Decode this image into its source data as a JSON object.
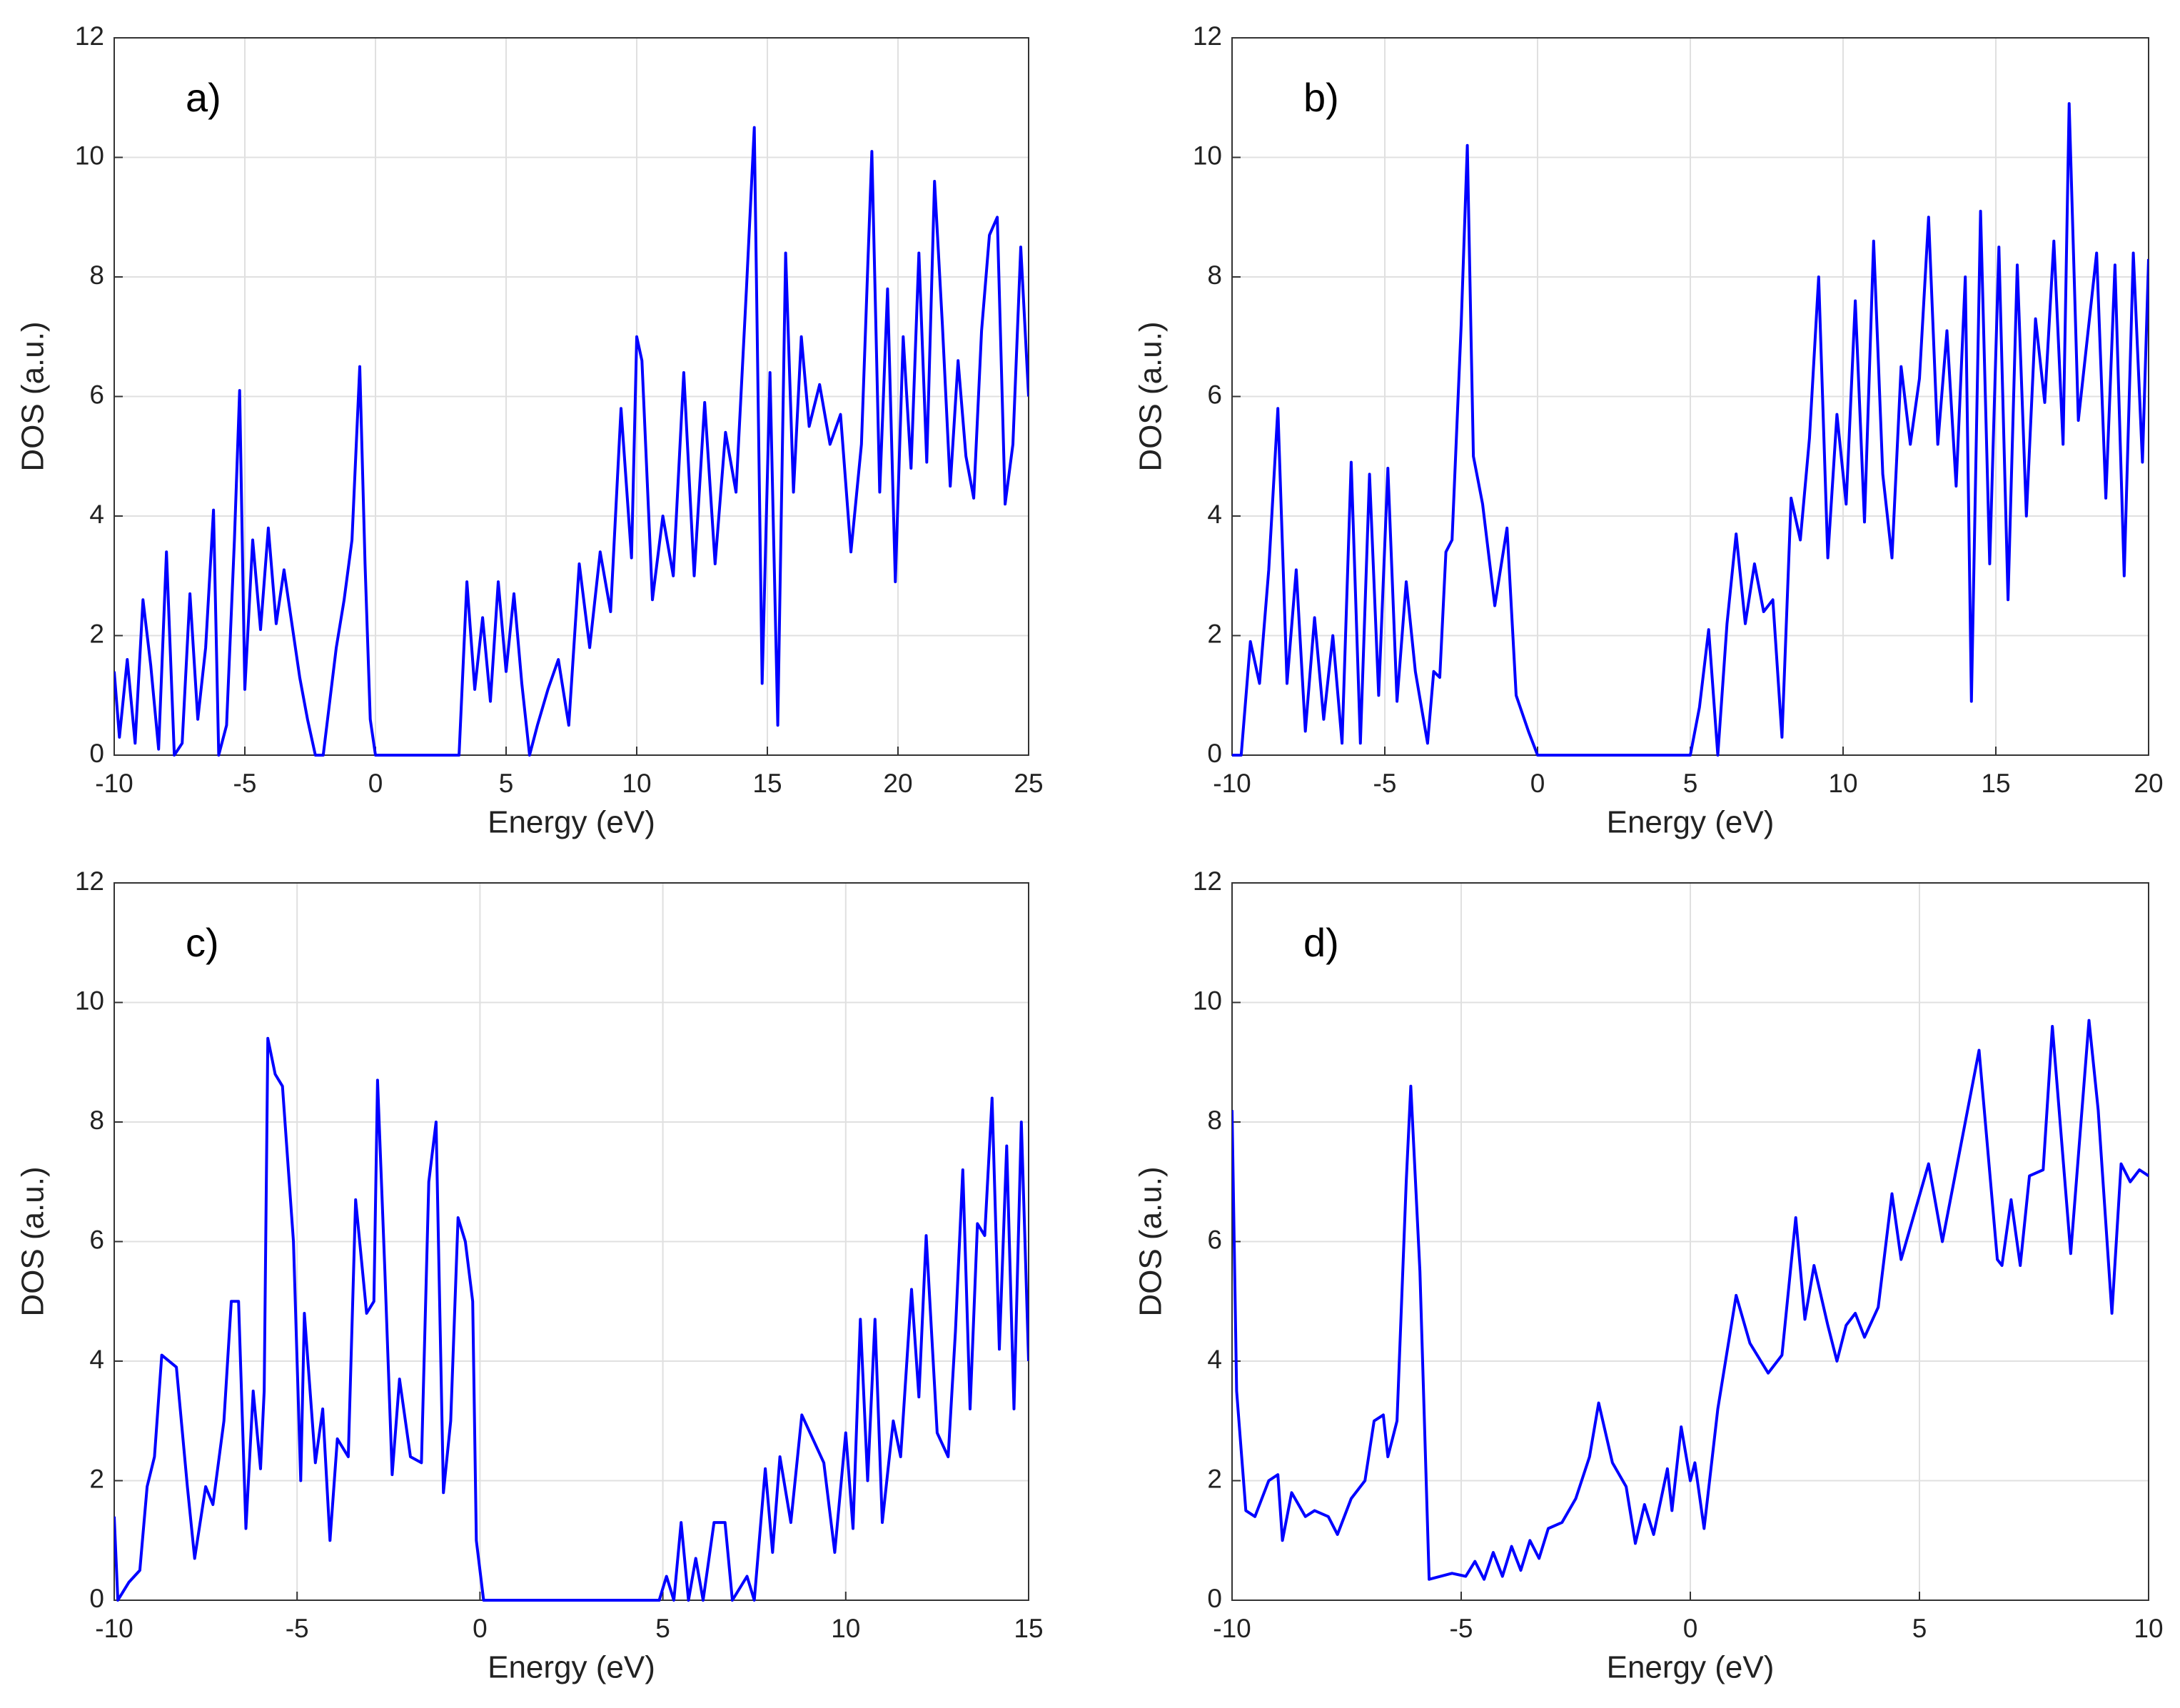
{
  "chart_data": [
    {
      "type": "line",
      "annotation": "a)",
      "xlabel": "Energy (eV)",
      "ylabel": "DOS (a.u.)",
      "color": "#0000ff",
      "grid": true,
      "xlim": [
        -10,
        25
      ],
      "xticks": [
        -10,
        -5,
        0,
        5,
        10,
        15,
        20,
        25
      ],
      "ylim": [
        0,
        12
      ],
      "yticks": [
        0,
        2,
        4,
        6,
        8,
        10,
        12
      ],
      "x": [
        -10,
        -9.8,
        -9.5,
        -9.2,
        -8.9,
        -8.6,
        -8.3,
        -8,
        -7.7,
        -7.4,
        -7.1,
        -6.8,
        -6.5,
        -6.2,
        -6,
        -5.7,
        -5.4,
        -5.2,
        -5,
        -4.7,
        -4.4,
        -4.1,
        -3.8,
        -3.5,
        -3.2,
        -2.9,
        -2.6,
        -2.3,
        -2,
        -1.5,
        -1.2,
        -0.9,
        -0.6,
        -0.4,
        -0.2,
        0,
        3.2,
        3.5,
        3.8,
        4.1,
        4.4,
        4.7,
        5,
        5.3,
        5.6,
        5.9,
        6.2,
        6.6,
        7,
        7.4,
        7.8,
        8.2,
        8.6,
        9,
        9.4,
        9.8,
        10,
        10.2,
        10.6,
        11,
        11.4,
        11.8,
        12.2,
        12.6,
        13,
        13.4,
        13.8,
        14.2,
        14.5,
        14.8,
        15.1,
        15.4,
        15.7,
        16,
        16.3,
        16.6,
        17,
        17.4,
        17.8,
        18.2,
        18.6,
        19,
        19.3,
        19.6,
        19.9,
        20.2,
        20.5,
        20.8,
        21.1,
        21.4,
        21.7,
        22,
        22.3,
        22.6,
        22.9,
        23.2,
        23.5,
        23.8,
        24.1,
        24.4,
        24.7,
        25
      ],
      "values": [
        1.4,
        0.3,
        1.6,
        0.2,
        2.6,
        1.5,
        0.1,
        3.4,
        0,
        0.2,
        2.7,
        0.6,
        1.8,
        4.1,
        0,
        0.5,
        3.6,
        6.1,
        1.1,
        3.6,
        2.1,
        3.8,
        2.2,
        3.1,
        2.2,
        1.3,
        0.6,
        0,
        0,
        1.8,
        2.6,
        3.6,
        6.5,
        3.2,
        0.6,
        0,
        0,
        2.9,
        1.1,
        2.3,
        0.9,
        2.9,
        1.4,
        2.7,
        1.2,
        0,
        0.5,
        1.1,
        1.6,
        0.5,
        3.2,
        1.8,
        3.4,
        2.4,
        5.8,
        3.3,
        7,
        6.6,
        2.6,
        4,
        3,
        6.4,
        3,
        5.9,
        3.2,
        5.4,
        4.4,
        7.8,
        10.5,
        1.2,
        6.4,
        0.5,
        8.4,
        4.4,
        7,
        5.5,
        6.2,
        5.2,
        5.7,
        3.4,
        5.2,
        10.1,
        4.4,
        7.8,
        2.9,
        7,
        4.8,
        8.4,
        4.9,
        9.6,
        7.2,
        4.5,
        6.6,
        5,
        4.3,
        7.1,
        8.7,
        9,
        4.2,
        5.2,
        8.5,
        6
      ]
    },
    {
      "type": "line",
      "annotation": "b)",
      "xlabel": "Energy (eV)",
      "ylabel": "DOS (a.u.)",
      "color": "#0000ff",
      "grid": true,
      "xlim": [
        -10,
        20
      ],
      "xticks": [
        -10,
        -5,
        0,
        5,
        10,
        15,
        20
      ],
      "ylim": [
        0,
        12
      ],
      "yticks": [
        0,
        2,
        4,
        6,
        8,
        10,
        12
      ],
      "x": [
        -10,
        -9.7,
        -9.4,
        -9.1,
        -8.8,
        -8.5,
        -8.2,
        -7.9,
        -7.6,
        -7.3,
        -7,
        -6.7,
        -6.4,
        -6.1,
        -5.8,
        -5.5,
        -5.2,
        -4.9,
        -4.6,
        -4.3,
        -4,
        -3.6,
        -3.4,
        -3.2,
        -3,
        -2.8,
        -2.5,
        -2.3,
        -2.1,
        -1.8,
        -1.4,
        -1,
        -0.7,
        -0.3,
        0,
        5,
        5.3,
        5.6,
        5.9,
        6.2,
        6.5,
        6.8,
        7.1,
        7.4,
        7.7,
        8,
        8.3,
        8.6,
        8.9,
        9.2,
        9.5,
        9.8,
        10.1,
        10.4,
        10.7,
        11,
        11.3,
        11.6,
        11.9,
        12.2,
        12.5,
        12.8,
        13.1,
        13.4,
        13.7,
        14,
        14.2,
        14.5,
        14.8,
        15.1,
        15.4,
        15.7,
        16,
        16.3,
        16.6,
        16.9,
        17.2,
        17.4,
        17.7,
        18,
        18.3,
        18.6,
        18.9,
        19.2,
        19.5,
        19.8,
        20
      ],
      "values": [
        0,
        0,
        1.9,
        1.2,
        3.1,
        5.8,
        1.2,
        3.1,
        0.4,
        2.3,
        0.6,
        2,
        0.2,
        4.9,
        0.2,
        4.7,
        1,
        4.8,
        0.9,
        2.9,
        1.4,
        0.2,
        1.4,
        1.3,
        3.4,
        3.6,
        7.2,
        10.2,
        5,
        4.2,
        2.5,
        3.8,
        1,
        0.4,
        0,
        0,
        0.8,
        2.1,
        0,
        2.2,
        3.7,
        2.2,
        3.2,
        2.4,
        2.6,
        0.3,
        4.3,
        3.6,
        5.3,
        8,
        3.3,
        5.7,
        4.2,
        7.6,
        3.9,
        8.6,
        4.7,
        3.3,
        6.5,
        5.2,
        6.3,
        9,
        5.2,
        7.1,
        4.5,
        8,
        0.9,
        9.1,
        3.2,
        8.5,
        2.6,
        8.2,
        4,
        7.3,
        5.9,
        8.6,
        5.2,
        10.9,
        5.6,
        7,
        8.4,
        4.3,
        8.2,
        3,
        8.4,
        4.9,
        8.3
      ]
    },
    {
      "type": "line",
      "annotation": "c)",
      "xlabel": "Energy (eV)",
      "ylabel": "DOS (a.u.)",
      "color": "#0000ff",
      "grid": true,
      "xlim": [
        -10,
        15
      ],
      "xticks": [
        -10,
        -5,
        0,
        5,
        10,
        15
      ],
      "ylim": [
        0,
        12
      ],
      "yticks": [
        0,
        2,
        4,
        6,
        8,
        10,
        12
      ],
      "x": [
        -10,
        -9.9,
        -9.6,
        -9.3,
        -9.1,
        -8.9,
        -8.7,
        -8.3,
        -8,
        -7.8,
        -7.5,
        -7.3,
        -7,
        -6.8,
        -6.6,
        -6.4,
        -6.2,
        -6,
        -5.9,
        -5.8,
        -5.6,
        -5.4,
        -5.1,
        -4.9,
        -4.8,
        -4.5,
        -4.3,
        -4.1,
        -3.9,
        -3.6,
        -3.4,
        -3.1,
        -2.9,
        -2.8,
        -2.6,
        -2.4,
        -2.2,
        -1.9,
        -1.6,
        -1.4,
        -1.2,
        -1,
        -0.8,
        -0.6,
        -0.4,
        -0.2,
        -0.1,
        0.1,
        4.9,
        5.1,
        5.3,
        5.5,
        5.7,
        5.9,
        6.1,
        6.4,
        6.7,
        6.9,
        7.3,
        7.5,
        7.8,
        8,
        8.2,
        8.5,
        8.8,
        9.1,
        9.4,
        9.7,
        10,
        10.2,
        10.4,
        10.6,
        10.8,
        11,
        11.3,
        11.5,
        11.8,
        12,
        12.2,
        12.5,
        12.8,
        13,
        13.2,
        13.4,
        13.6,
        13.8,
        14,
        14.2,
        14.4,
        14.6,
        14.8,
        15
      ],
      "values": [
        1.4,
        0,
        0.3,
        0.5,
        1.9,
        2.4,
        4.1,
        3.9,
        1.9,
        0.7,
        1.9,
        1.6,
        3,
        5,
        5,
        1.2,
        3.5,
        2.2,
        3.5,
        9.4,
        8.8,
        8.6,
        6,
        2,
        4.8,
        2.3,
        3.2,
        1,
        2.7,
        2.4,
        6.7,
        4.8,
        5,
        8.7,
        5.5,
        2.1,
        3.7,
        2.4,
        2.3,
        7,
        8,
        1.8,
        3,
        6.4,
        6,
        5,
        1,
        0,
        0,
        0.4,
        0,
        1.3,
        0,
        0.7,
        0,
        1.3,
        1.3,
        0,
        0.4,
        0,
        2.2,
        0.8,
        2.4,
        1.3,
        3.1,
        2.7,
        2.3,
        0.8,
        2.8,
        1.2,
        4.7,
        2,
        4.7,
        1.3,
        3,
        2.4,
        5.2,
        3.4,
        6.1,
        2.8,
        2.4,
        4.5,
        7.2,
        3.2,
        6.3,
        6.1,
        8.4,
        4.2,
        7.6,
        3.2,
        8,
        4
      ]
    },
    {
      "type": "line",
      "annotation": "d)",
      "xlabel": "Energy (eV)",
      "ylabel": "DOS (a.u.)",
      "color": "#0000ff",
      "grid": true,
      "xlim": [
        -10,
        10
      ],
      "xticks": [
        -10,
        -5,
        0,
        5,
        10
      ],
      "ylim": [
        0,
        12
      ],
      "yticks": [
        0,
        2,
        4,
        6,
        8,
        10,
        12
      ],
      "x": [
        -10,
        -9.9,
        -9.7,
        -9.5,
        -9.2,
        -9,
        -8.9,
        -8.7,
        -8.4,
        -8.2,
        -7.9,
        -7.7,
        -7.4,
        -7.1,
        -6.9,
        -6.7,
        -6.6,
        -6.4,
        -6.2,
        -6.1,
        -5.9,
        -5.7,
        -5.2,
        -4.9,
        -4.7,
        -4.5,
        -4.3,
        -4.1,
        -3.9,
        -3.7,
        -3.5,
        -3.3,
        -3.1,
        -2.8,
        -2.5,
        -2.2,
        -2,
        -1.7,
        -1.4,
        -1.2,
        -1,
        -0.8,
        -0.5,
        -0.4,
        -0.2,
        0,
        0.1,
        0.3,
        0.6,
        1,
        1.3,
        1.7,
        2,
        2.3,
        2.5,
        2.7,
        3,
        3.2,
        3.4,
        3.6,
        3.8,
        4.1,
        4.4,
        4.6,
        5.2,
        5.5,
        6.3,
        6.7,
        6.8,
        7,
        7.2,
        7.4,
        7.7,
        7.9,
        8.3,
        8.7,
        8.9,
        9.2,
        9.4,
        9.6,
        9.8,
        10
      ],
      "values": [
        8.2,
        3.5,
        1.5,
        1.4,
        2,
        2.1,
        1,
        1.8,
        1.4,
        1.5,
        1.4,
        1.1,
        1.7,
        2,
        3,
        3.1,
        2.4,
        3,
        7,
        8.6,
        5.5,
        0.35,
        0.45,
        0.4,
        0.65,
        0.35,
        0.8,
        0.4,
        0.9,
        0.5,
        1,
        0.7,
        1.2,
        1.3,
        1.7,
        2.4,
        3.3,
        2.3,
        1.9,
        0.95,
        1.6,
        1.1,
        2.2,
        1.5,
        2.9,
        2,
        2.3,
        1.2,
        3.2,
        5.1,
        4.3,
        3.8,
        4.1,
        6.4,
        4.7,
        5.6,
        4.6,
        4,
        4.6,
        4.8,
        4.4,
        4.9,
        6.8,
        5.7,
        7.3,
        6,
        9.2,
        5.7,
        5.6,
        6.7,
        5.6,
        7.1,
        7.2,
        9.6,
        5.8,
        9.7,
        8.2,
        4.8,
        7.3,
        7,
        7.2,
        7.1
      ]
    }
  ]
}
